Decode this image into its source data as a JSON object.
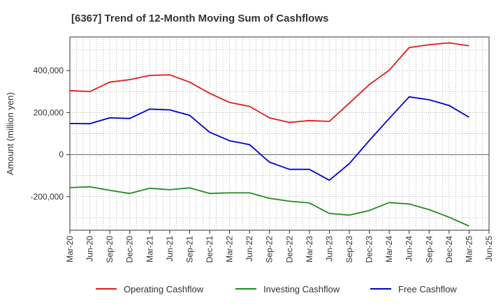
{
  "chart_data": {
    "type": "line",
    "title": "[6367]  Trend of 12-Month Moving Sum of Cashflows",
    "xlabel": "",
    "ylabel": "Amount (million yen)",
    "categories": [
      "Mar-20",
      "Jun-20",
      "Sep-20",
      "Dec-20",
      "Mar-21",
      "Jun-21",
      "Sep-21",
      "Dec-21",
      "Mar-22",
      "Jun-22",
      "Sep-22",
      "Dec-22",
      "Mar-23",
      "Jun-23",
      "Sep-23",
      "Dec-23",
      "Mar-24",
      "Jun-24",
      "Sep-24",
      "Dec-24",
      "Mar-25",
      "Jun-25"
    ],
    "ylim": [
      -360000,
      560000
    ],
    "yticks": [
      -200000,
      0,
      200000,
      400000
    ],
    "ytick_labels": [
      "-200,000",
      "0",
      "200,000",
      "400,000"
    ],
    "grid": true,
    "legend_position": "bottom",
    "series": [
      {
        "name": "Operating Cashflow",
        "color": "#e31a1c",
        "values": [
          305000,
          300000,
          345000,
          357000,
          377000,
          380000,
          345000,
          292000,
          248000,
          230000,
          175000,
          153000,
          162000,
          158000,
          245000,
          333000,
          402000,
          510000,
          523000,
          532000,
          518000,
          null
        ]
      },
      {
        "name": "Investing Cashflow",
        "color": "#228b22",
        "values": [
          -157000,
          -153000,
          -170000,
          -185000,
          -160000,
          -167000,
          -158000,
          -185000,
          -182000,
          -182000,
          -208000,
          -222000,
          -230000,
          -280000,
          -288000,
          -266000,
          -228000,
          -235000,
          -262000,
          -298000,
          -340000,
          null
        ]
      },
      {
        "name": "Free Cashflow",
        "color": "#0000cc",
        "values": [
          148000,
          147000,
          175000,
          172000,
          217000,
          213000,
          187000,
          107000,
          66000,
          48000,
          -36000,
          -70000,
          -70000,
          -122000,
          -43000,
          67000,
          172000,
          275000,
          261000,
          234000,
          178000,
          null
        ]
      }
    ]
  }
}
